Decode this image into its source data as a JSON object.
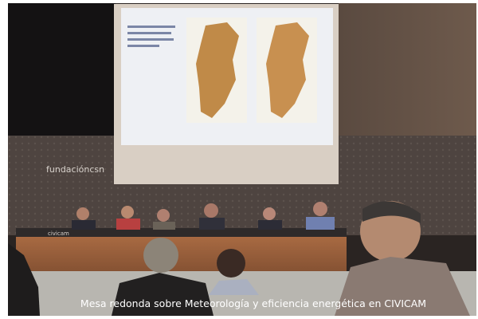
{
  "photo": {
    "caption": "Mesa redonda sobre Meteorología y eficiencia energética en CIVICAM",
    "wall_sign": "fundacióncsn",
    "table_sign": "civicam"
  }
}
